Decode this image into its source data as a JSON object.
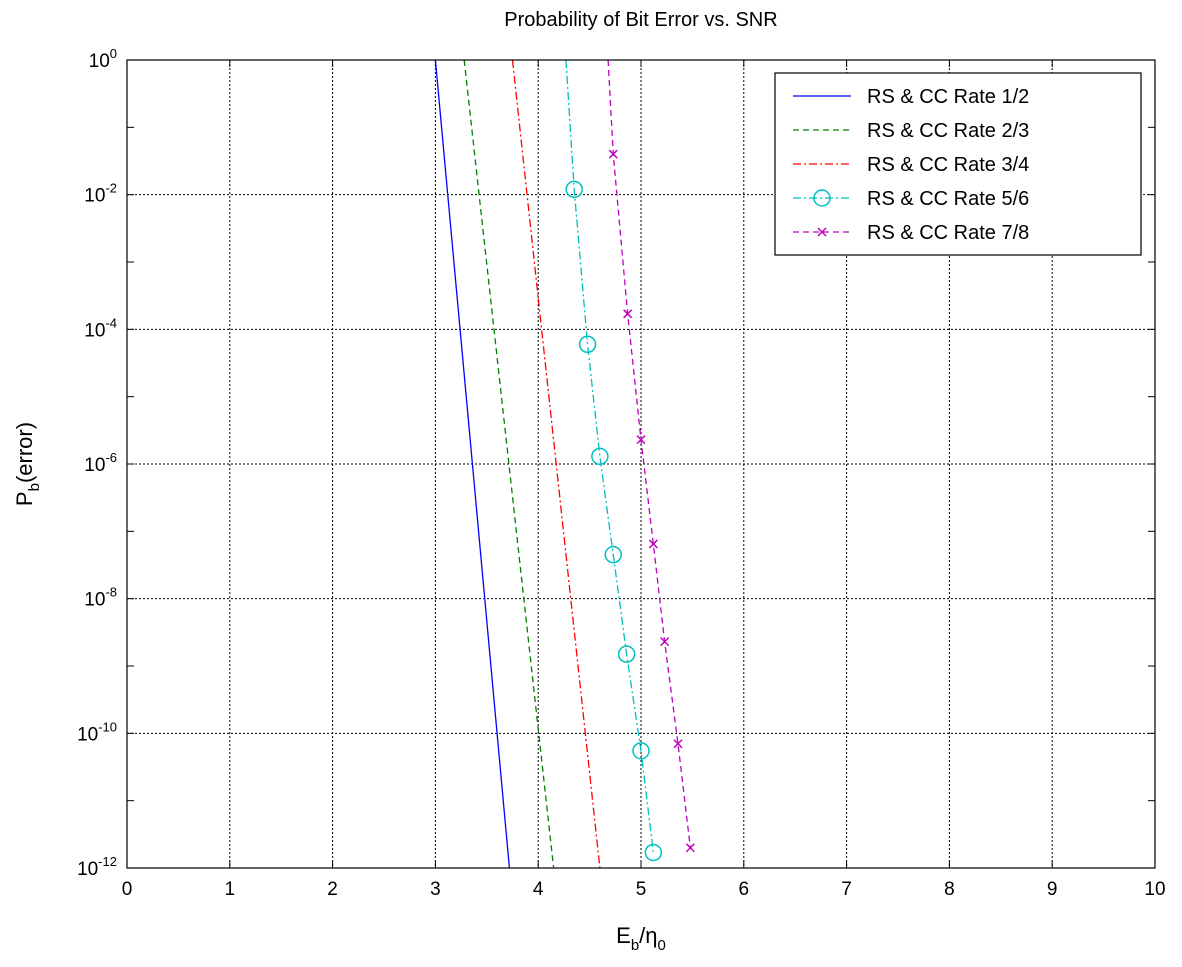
{
  "chart_data": {
    "type": "line",
    "title": "Probability of Bit Error vs. SNR",
    "xlabel": {
      "main": "E",
      "sub1": "b",
      "mid": "/η",
      "sub2": "0"
    },
    "ylabel": {
      "main": "P",
      "sub": "b",
      "rest": "(error)"
    },
    "xlim": [
      0,
      10
    ],
    "ylim": [
      1e-12,
      1
    ],
    "yscale": "log",
    "grid": true,
    "legend_position": "top-right",
    "xticks": [
      0,
      1,
      2,
      3,
      4,
      5,
      6,
      7,
      8,
      9,
      10
    ],
    "yticks": [
      {
        "base": "10",
        "exp": "0"
      },
      {
        "base": "10",
        "exp": "-2"
      },
      {
        "base": "10",
        "exp": "-4"
      },
      {
        "base": "10",
        "exp": "-6"
      },
      {
        "base": "10",
        "exp": "-8"
      },
      {
        "base": "10",
        "exp": "-10"
      },
      {
        "base": "10",
        "exp": "-12"
      }
    ],
    "series": [
      {
        "name": "RS & CC Rate 1/2",
        "color": "#0000ff",
        "dash": "solid",
        "marker": "none",
        "x": [
          3.0,
          3.72
        ],
        "y": [
          1,
          1e-12
        ]
      },
      {
        "name": "RS & CC Rate 2/3",
        "color": "#008000",
        "dash": "dashed",
        "marker": "none",
        "x": [
          3.28,
          4.15
        ],
        "y": [
          1,
          1e-12
        ]
      },
      {
        "name": "RS & CC Rate 3/4",
        "color": "#ff0000",
        "dash": "dashdot",
        "marker": "none",
        "x": [
          3.75,
          4.6
        ],
        "y": [
          1,
          1e-12
        ]
      },
      {
        "name": "RS & CC Rate 5/6",
        "color": "#00bfbf",
        "dash": "dashdot",
        "marker": "circle",
        "x": [
          4.27,
          4.35,
          4.48,
          4.6,
          4.73,
          4.86,
          5.0,
          5.12
        ],
        "y": [
          1,
          0.012,
          6e-05,
          1.3e-06,
          4.5e-08,
          1.5e-09,
          5.5e-11,
          1.7e-12
        ]
      },
      {
        "name": "RS & CC Rate 7/8",
        "color": "#bf00bf",
        "dash": "dashed",
        "marker": "x",
        "x": [
          4.68,
          4.73,
          4.87,
          5.0,
          5.12,
          5.23,
          5.36,
          5.48
        ],
        "y": [
          1,
          0.04,
          0.00017,
          2.3e-06,
          6.5e-08,
          2.3e-09,
          7e-11,
          2e-12
        ]
      }
    ]
  }
}
